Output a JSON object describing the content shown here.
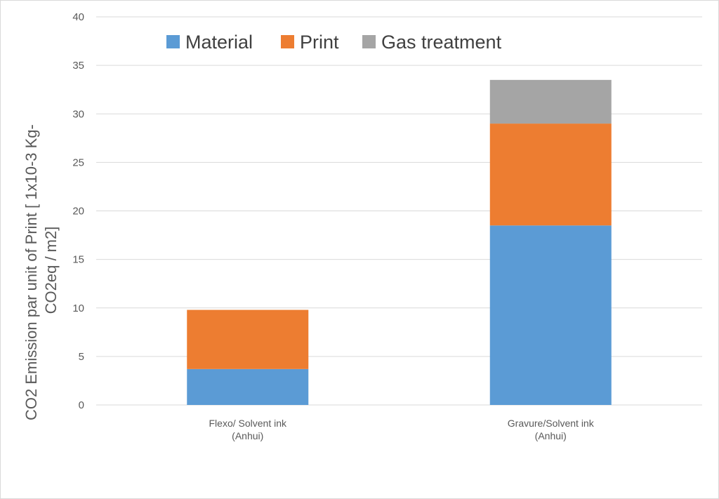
{
  "chart_data": {
    "type": "bar",
    "stacked": true,
    "categories": [
      [
        "Flexo/ Solvent ink",
        "(Anhui)"
      ],
      [
        "Gravure/Solvent ink",
        "(Anhui)"
      ]
    ],
    "series": [
      {
        "name": "Material",
        "color": "#5b9bd5",
        "values": [
          3.7,
          18.5
        ]
      },
      {
        "name": "Print",
        "color": "#ed7d31",
        "values": [
          6.1,
          10.5
        ]
      },
      {
        "name": "Gas treatment",
        "color": "#a5a5a5",
        "values": [
          0,
          4.5
        ]
      }
    ],
    "ylabel_lines": [
      "CO2 Emission par unit of Print [ 1x10-3  Kg-",
      "CO2eq / m2]"
    ],
    "ylim": [
      0,
      40
    ],
    "yticks": [
      0,
      5,
      10,
      15,
      20,
      25,
      30,
      35,
      40
    ],
    "grid": true,
    "legend_position": "top"
  }
}
